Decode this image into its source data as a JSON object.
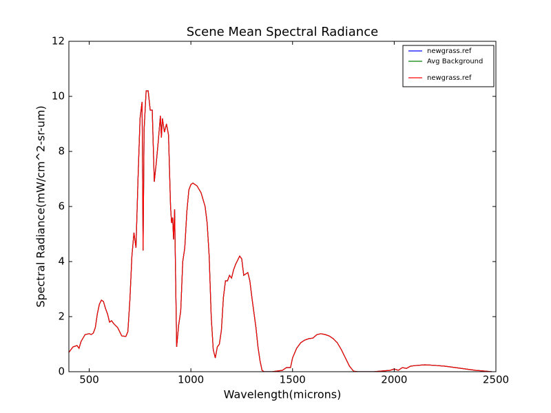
{
  "chart_data": {
    "type": "line",
    "title": "Scene Mean Spectral Radiance",
    "x_label": "Wavelength(microns)",
    "y_label": "Spectral Radiance(mW/cm^2-sr-um)",
    "xlim": [
      400,
      2500
    ],
    "ylim": [
      0,
      12
    ],
    "xticks": [
      500,
      1000,
      1500,
      2000,
      2500
    ],
    "yticks": [
      0,
      2,
      4,
      6,
      8,
      10,
      12
    ],
    "legend": "upper right",
    "x": [
      400,
      420,
      440,
      450,
      460,
      480,
      500,
      510,
      520,
      530,
      540,
      550,
      560,
      570,
      580,
      590,
      600,
      610,
      620,
      640,
      660,
      680,
      690,
      700,
      710,
      720,
      730,
      740,
      750,
      760,
      765,
      770,
      780,
      790,
      800,
      810,
      820,
      830,
      840,
      850,
      855,
      860,
      870,
      880,
      890,
      900,
      905,
      910,
      915,
      920,
      930,
      940,
      950,
      960,
      970,
      980,
      990,
      1000,
      1010,
      1030,
      1050,
      1070,
      1080,
      1090,
      1100,
      1110,
      1120,
      1130,
      1140,
      1150,
      1160,
      1170,
      1180,
      1190,
      1200,
      1210,
      1220,
      1240,
      1250,
      1260,
      1270,
      1280,
      1290,
      1300,
      1320,
      1330,
      1340,
      1350,
      1360,
      1400,
      1450,
      1470,
      1490,
      1500,
      1520,
      1540,
      1560,
      1580,
      1600,
      1620,
      1640,
      1660,
      1680,
      1700,
      1720,
      1740,
      1760,
      1780,
      1800,
      1820,
      1900,
      1980,
      2000,
      2020,
      2040,
      2060,
      2080,
      2100,
      2150,
      2200,
      2250,
      2300,
      2350,
      2400,
      2450,
      2480
    ],
    "series": [
      {
        "name": "newgrass.ref",
        "color": "#0000ff",
        "values": [
          0.7,
          0.9,
          0.95,
          0.85,
          1.1,
          1.35,
          1.38,
          1.35,
          1.4,
          1.6,
          2.1,
          2.45,
          2.6,
          2.55,
          2.3,
          2.1,
          1.8,
          1.85,
          1.75,
          1.6,
          1.3,
          1.28,
          1.45,
          2.6,
          4.2,
          5.05,
          4.5,
          7.0,
          9.2,
          9.8,
          4.4,
          8.8,
          10.2,
          10.2,
          9.5,
          9.5,
          6.9,
          7.6,
          8.4,
          9.3,
          8.5,
          9.2,
          8.7,
          9.0,
          8.6,
          6.0,
          5.4,
          5.6,
          4.8,
          5.9,
          0.9,
          1.7,
          2.2,
          4.0,
          4.5,
          5.8,
          6.6,
          6.8,
          6.85,
          6.75,
          6.5,
          6.0,
          5.4,
          4.2,
          2.0,
          0.8,
          0.5,
          0.9,
          1.0,
          1.5,
          2.7,
          3.3,
          3.3,
          3.5,
          3.4,
          3.7,
          3.9,
          4.2,
          4.1,
          3.5,
          3.55,
          3.6,
          3.3,
          2.7,
          1.6,
          0.9,
          0.4,
          0.05,
          0,
          0,
          0.05,
          0.15,
          0.15,
          0.5,
          0.85,
          1.05,
          1.15,
          1.2,
          1.22,
          1.35,
          1.38,
          1.35,
          1.3,
          1.2,
          1.05,
          0.8,
          0.5,
          0.2,
          0.02,
          0,
          0,
          0.05,
          0.1,
          0.05,
          0.15,
          0.12,
          0.2,
          0.22,
          0.25,
          0.23,
          0.2,
          0.15,
          0.1,
          0.05,
          0.02,
          0
        ]
      },
      {
        "name": "Avg Background",
        "color": "#008000",
        "values": [
          0.7,
          0.9,
          0.95,
          0.85,
          1.1,
          1.35,
          1.38,
          1.35,
          1.4,
          1.6,
          2.1,
          2.45,
          2.6,
          2.55,
          2.3,
          2.1,
          1.8,
          1.85,
          1.75,
          1.6,
          1.3,
          1.28,
          1.45,
          2.6,
          4.2,
          5.05,
          4.5,
          7.0,
          9.2,
          9.8,
          4.4,
          8.8,
          10.2,
          10.2,
          9.5,
          9.5,
          6.9,
          7.6,
          8.4,
          9.3,
          8.5,
          9.2,
          8.7,
          9.0,
          8.6,
          6.0,
          5.4,
          5.6,
          4.8,
          5.9,
          0.9,
          1.7,
          2.2,
          4.0,
          4.5,
          5.8,
          6.6,
          6.8,
          6.85,
          6.75,
          6.5,
          6.0,
          5.4,
          4.2,
          2.0,
          0.8,
          0.5,
          0.9,
          1.0,
          1.5,
          2.7,
          3.3,
          3.3,
          3.5,
          3.4,
          3.7,
          3.9,
          4.2,
          4.1,
          3.5,
          3.55,
          3.6,
          3.3,
          2.7,
          1.6,
          0.9,
          0.4,
          0.05,
          0,
          0,
          0.05,
          0.15,
          0.15,
          0.5,
          0.85,
          1.05,
          1.15,
          1.2,
          1.22,
          1.35,
          1.38,
          1.35,
          1.3,
          1.2,
          1.05,
          0.8,
          0.5,
          0.2,
          0.02,
          0,
          0,
          0.05,
          0.1,
          0.05,
          0.15,
          0.12,
          0.2,
          0.22,
          0.25,
          0.23,
          0.2,
          0.15,
          0.1,
          0.05,
          0.02,
          0
        ]
      },
      {
        "name": "newgrass.ref",
        "color": "#ff0000",
        "values": [
          0.7,
          0.9,
          0.95,
          0.85,
          1.1,
          1.35,
          1.38,
          1.35,
          1.4,
          1.6,
          2.1,
          2.45,
          2.6,
          2.55,
          2.3,
          2.1,
          1.8,
          1.85,
          1.75,
          1.6,
          1.3,
          1.28,
          1.45,
          2.6,
          4.2,
          5.05,
          4.5,
          7.0,
          9.2,
          9.8,
          4.4,
          8.8,
          10.2,
          10.2,
          9.5,
          9.5,
          6.9,
          7.6,
          8.4,
          9.3,
          8.5,
          9.2,
          8.7,
          9.0,
          8.6,
          6.0,
          5.4,
          5.6,
          4.8,
          5.9,
          0.9,
          1.7,
          2.2,
          4.0,
          4.5,
          5.8,
          6.6,
          6.8,
          6.85,
          6.75,
          6.5,
          6.0,
          5.4,
          4.2,
          2.0,
          0.8,
          0.5,
          0.9,
          1.0,
          1.5,
          2.7,
          3.3,
          3.3,
          3.5,
          3.4,
          3.7,
          3.9,
          4.2,
          4.1,
          3.5,
          3.55,
          3.6,
          3.3,
          2.7,
          1.6,
          0.9,
          0.4,
          0.05,
          0,
          0,
          0.05,
          0.15,
          0.15,
          0.5,
          0.85,
          1.05,
          1.15,
          1.2,
          1.22,
          1.35,
          1.38,
          1.35,
          1.3,
          1.2,
          1.05,
          0.8,
          0.5,
          0.2,
          0.02,
          0,
          0,
          0.05,
          0.1,
          0.05,
          0.15,
          0.12,
          0.2,
          0.22,
          0.25,
          0.23,
          0.2,
          0.15,
          0.1,
          0.05,
          0.02,
          0
        ]
      }
    ]
  }
}
